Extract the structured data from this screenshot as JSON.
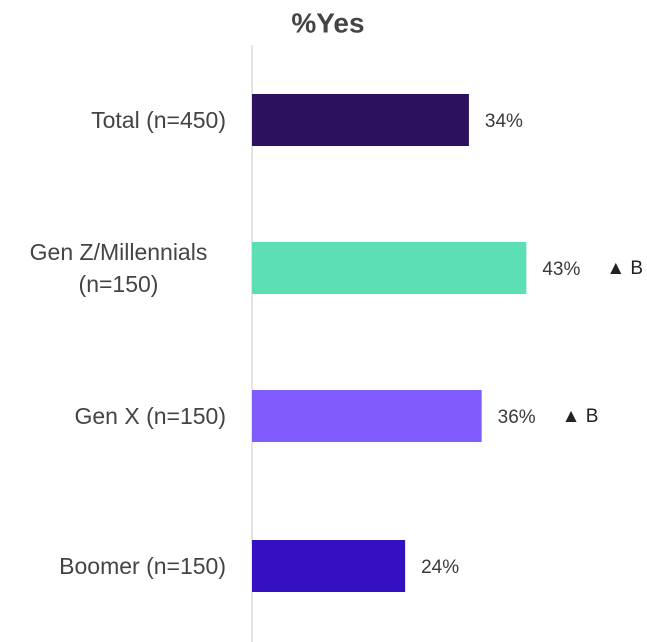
{
  "chart_data": {
    "type": "bar",
    "orientation": "horizontal",
    "title": "%Yes",
    "categories": [
      "Total (n=450)",
      "Gen Z/Millennials (n=150)",
      "Gen X (n=150)",
      "Boomer (n=150)"
    ],
    "values": [
      34,
      43,
      36,
      24
    ],
    "value_labels": [
      "34%",
      "43%",
      "36%",
      "24%"
    ],
    "colors": [
      "#2c1160",
      "#5ddfb5",
      "#815cfd",
      "#3410c2"
    ],
    "annotations": [
      null,
      "▲ B",
      "▲ B",
      null
    ]
  }
}
